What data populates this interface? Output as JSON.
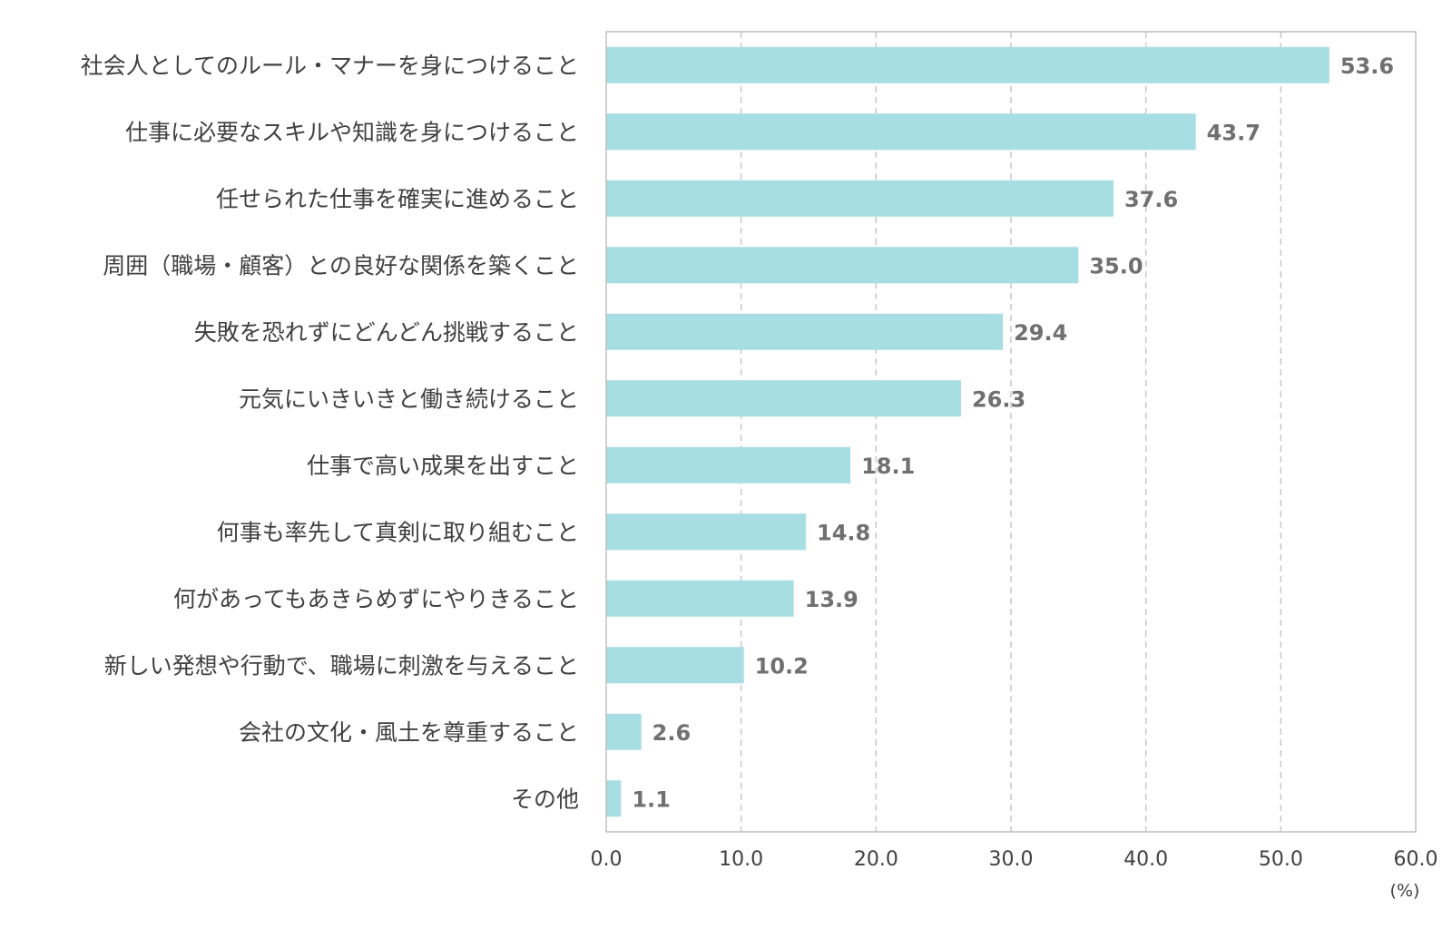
{
  "chart_data": {
    "type": "bar",
    "orientation": "horizontal",
    "categories": [
      "社会人としてのルール・マナーを身につけること",
      "仕事に必要なスキルや知識を身につけること",
      "任せられた仕事を確実に進めること",
      "周囲（職場・顧客）との良好な関係を築くこと",
      "失敗を恐れずにどんどん挑戦すること",
      "元気にいきいきと働き続けること",
      "仕事で高い成果を出すこと",
      "何事も率先して真剣に取り組むこと",
      "何があってもあきらめずにやりきること",
      "新しい発想や行動で、職場に刺激を与えること",
      "会社の文化・風土を尊重すること",
      "その他"
    ],
    "values": [
      53.6,
      43.7,
      37.6,
      35.0,
      29.4,
      26.3,
      18.1,
      14.8,
      13.9,
      10.2,
      2.6,
      1.1
    ],
    "value_labels": [
      "53.6",
      "43.7",
      "37.6",
      "35.0",
      "29.4",
      "26.3",
      "18.1",
      "14.8",
      "13.9",
      "10.2",
      "2.6",
      "1.1"
    ],
    "xlim": [
      0,
      60
    ],
    "x_ticks": [
      "0.0",
      "10.0",
      "20.0",
      "30.0",
      "40.0",
      "50.0",
      "60.0"
    ],
    "x_unit": "(%)",
    "grid": "vertical dashed",
    "colors": {
      "bar": "#A6DEE3",
      "grid": "#C8C8C8",
      "frame": "#BFBFBF",
      "value_text": "#707070",
      "label_text": "#404040"
    }
  }
}
